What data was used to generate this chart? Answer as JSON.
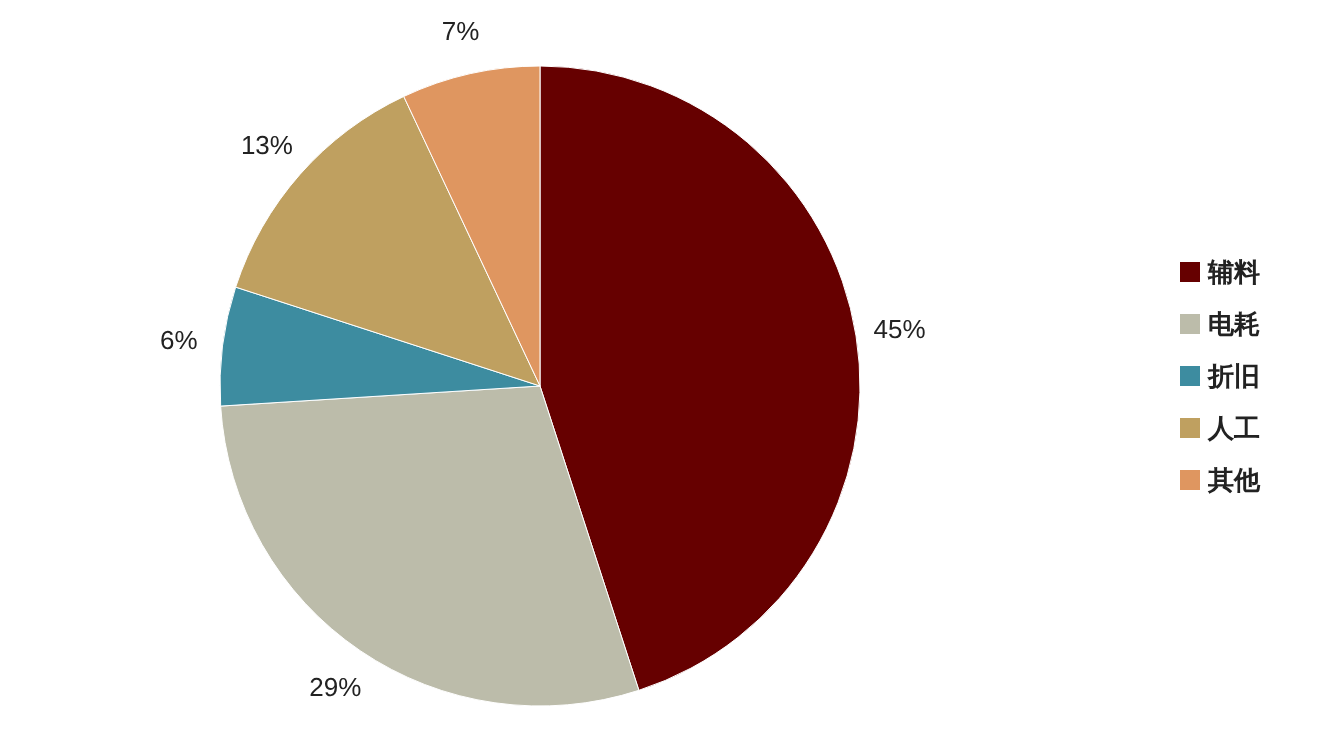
{
  "chart_data": {
    "type": "pie",
    "categories": [
      "辅料",
      "电耗",
      "折旧",
      "人工",
      "其他"
    ],
    "values": [
      45,
      29,
      6,
      13,
      7
    ],
    "colors": [
      "#660000",
      "#bcbcaa",
      "#3d8ca0",
      "#bfa060",
      "#df9660"
    ],
    "value_labels": [
      "45%",
      "29%",
      "6%",
      "13%",
      "7%"
    ],
    "legend": "right"
  }
}
